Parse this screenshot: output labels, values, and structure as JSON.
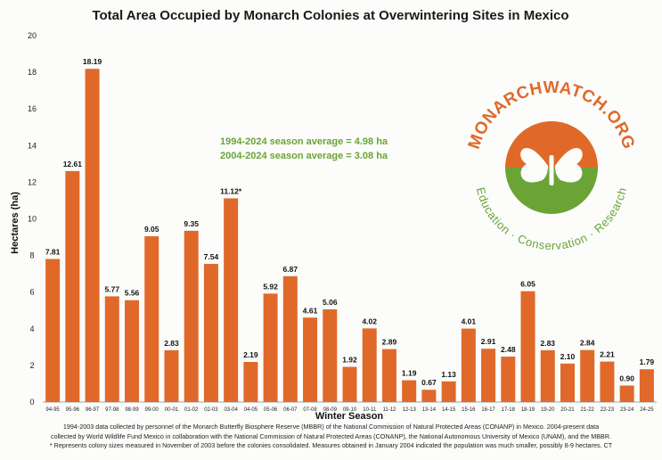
{
  "chart_data": {
    "type": "bar",
    "title": "Total Area Occupied by Monarch Colonies at Overwintering Sites in Mexico",
    "xlabel": "Winter Season",
    "ylabel": "Hectares (ha)",
    "ylim": [
      0,
      20
    ],
    "yticks": [
      0,
      2,
      4,
      6,
      8,
      10,
      12,
      14,
      16,
      18,
      20
    ],
    "bar_color": "#e0692a",
    "categories": [
      "94-95",
      "95-96",
      "96-97",
      "97-98",
      "98-99",
      "99-00",
      "00-01",
      "01-02",
      "02-03",
      "03-04",
      "04-05",
      "05-06",
      "06-07",
      "07-08",
      "08-09",
      "09-10",
      "10-11",
      "11-12",
      "12-13",
      "13-14",
      "14-15",
      "15-16",
      "16-17",
      "17-18",
      "18-19",
      "19-20",
      "20-21",
      "21-22",
      "22-23",
      "23-24",
      "24-25"
    ],
    "values": [
      7.81,
      12.61,
      18.19,
      5.77,
      5.56,
      9.05,
      2.83,
      9.35,
      7.54,
      11.12,
      2.19,
      5.92,
      6.87,
      4.61,
      5.06,
      1.92,
      4.02,
      2.89,
      1.19,
      0.67,
      1.13,
      4.01,
      2.91,
      2.48,
      6.05,
      2.83,
      2.1,
      2.84,
      2.21,
      0.9,
      1.79
    ],
    "labels": [
      "7.81",
      "12.61",
      "18.19",
      "5.77",
      "5.56",
      "9.05",
      "2.83",
      "9.35",
      "7.54",
      "11.12*",
      "2.19",
      "5.92",
      "6.87",
      "4.61",
      "5.06",
      "1.92",
      "4.02",
      "2.89",
      "1.19",
      "0.67",
      "1.13",
      "4.01",
      "2.91",
      "2.48",
      "6.05",
      "2.83",
      "2.10",
      "2.84",
      "2.21",
      "0.90",
      "1.79"
    ],
    "annotations": [
      "1994-2024 season average = 4.98 ha",
      "2004-2024 season average = 3.08 ha"
    ]
  },
  "logo": {
    "top_text": "MONARCHWATCH.ORG",
    "bottom_text": "Education · Conservation · Research",
    "orange": "#e0692a",
    "green": "#6aa437"
  },
  "footnote": [
    "1994-2003 data collected by personnel of the Monarch Butterfly Biosphere Reserve (MBBR) of the National Commission of Natural Protected Areas (CONANP) in Mexico. 2004-present data",
    "collected by World Wildlife Fund Mexico in collaboration with the National Commission of Natural Protected Areas (CONANP), the National Autonomous University of Mexico (UNAM), and the MBBR.",
    "* Represents colony sizes measured in November of 2003 before the colonies consolidated. Measures obtained in January 2004 indicated the population was much smaller, possibly 8-9 hectares. CT"
  ]
}
